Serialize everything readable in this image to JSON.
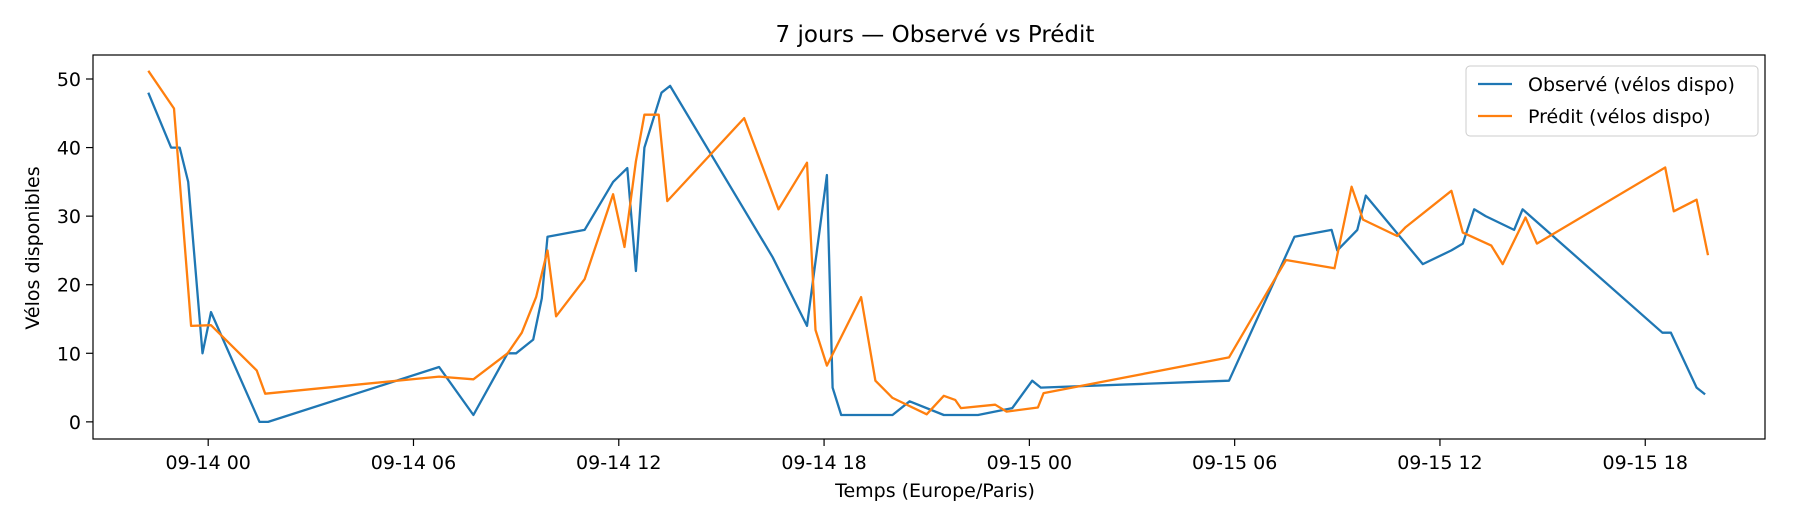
{
  "chart_data": {
    "type": "line",
    "title": "7 jours — Observé vs Prédit",
    "xlabel": "Temps (Europe/Paris)",
    "ylabel": "Vélos disponibles",
    "x_range": [
      "2024-09-13 20:38",
      "2024-09-15 21:30"
    ],
    "ylim": [
      -2.5,
      53.5
    ],
    "x_ticks": [
      {
        "label": "09-14 00",
        "t": "2024-09-14 00:00"
      },
      {
        "label": "09-14 06",
        "t": "2024-09-14 06:00"
      },
      {
        "label": "09-14 12",
        "t": "2024-09-14 12:00"
      },
      {
        "label": "09-14 18",
        "t": "2024-09-14 18:00"
      },
      {
        "label": "09-15 00",
        "t": "2024-09-15 00:00"
      },
      {
        "label": "09-15 06",
        "t": "2024-09-15 06:00"
      },
      {
        "label": "09-15 12",
        "t": "2024-09-15 12:00"
      },
      {
        "label": "09-15 18",
        "t": "2024-09-15 18:00"
      }
    ],
    "y_ticks": [
      0,
      10,
      20,
      30,
      40,
      50
    ],
    "grid": false,
    "legend_position": "top-right",
    "series": [
      {
        "name": "Observé (vélos dispo)",
        "color": "#1f77b4",
        "points": [
          [
            "2024-09-13 22:15",
            48
          ],
          [
            "2024-09-13 22:55",
            40
          ],
          [
            "2024-09-13 23:10",
            40
          ],
          [
            "2024-09-13 23:25",
            35
          ],
          [
            "2024-09-13 23:50",
            10
          ],
          [
            "2024-09-14 00:05",
            16
          ],
          [
            "2024-09-14 01:30",
            0
          ],
          [
            "2024-09-14 01:45",
            0
          ],
          [
            "2024-09-14 06:45",
            8
          ],
          [
            "2024-09-14 07:45",
            1
          ],
          [
            "2024-09-14 08:45",
            10
          ],
          [
            "2024-09-14 09:00",
            10
          ],
          [
            "2024-09-14 09:30",
            12
          ],
          [
            "2024-09-14 09:45",
            18
          ],
          [
            "2024-09-14 09:55",
            27
          ],
          [
            "2024-09-14 11:00",
            28
          ],
          [
            "2024-09-14 11:50",
            35
          ],
          [
            "2024-09-14 12:15",
            37
          ],
          [
            "2024-09-14 12:30",
            22
          ],
          [
            "2024-09-14 12:45",
            40
          ],
          [
            "2024-09-14 13:15",
            48
          ],
          [
            "2024-09-14 13:30",
            49
          ],
          [
            "2024-09-14 16:30",
            24
          ],
          [
            "2024-09-14 17:30",
            14
          ],
          [
            "2024-09-14 17:30",
            14
          ],
          [
            "2024-09-14 18:05",
            36
          ],
          [
            "2024-09-14 18:15",
            5
          ],
          [
            "2024-09-14 18:30",
            1
          ],
          [
            "2024-09-14 20:00",
            1
          ],
          [
            "2024-09-14 20:30",
            3
          ],
          [
            "2024-09-14 21:30",
            1
          ],
          [
            "2024-09-14 22:30",
            1
          ],
          [
            "2024-09-14 23:30",
            2
          ],
          [
            "2024-09-15 00:05",
            6
          ],
          [
            "2024-09-15 00:20",
            5
          ],
          [
            "2024-09-15 05:50",
            6
          ],
          [
            "2024-09-15 07:45",
            27
          ],
          [
            "2024-09-15 08:50",
            28
          ],
          [
            "2024-09-15 09:00",
            25
          ],
          [
            "2024-09-15 09:35",
            28
          ],
          [
            "2024-09-15 09:50",
            33
          ],
          [
            "2024-09-15 11:30",
            23
          ],
          [
            "2024-09-15 12:20",
            25
          ],
          [
            "2024-09-15 12:40",
            26
          ],
          [
            "2024-09-15 13:00",
            31
          ],
          [
            "2024-09-15 13:20",
            30
          ],
          [
            "2024-09-15 14:10",
            28
          ],
          [
            "2024-09-15 14:25",
            31
          ],
          [
            "2024-09-15 18:30",
            13
          ],
          [
            "2024-09-15 18:45",
            13
          ],
          [
            "2024-09-15 19:30",
            5
          ],
          [
            "2024-09-15 19:45",
            4
          ]
        ]
      },
      {
        "name": "Prédit (vélos dispo)",
        "color": "#ff7f0e",
        "points": [
          [
            "2024-09-13 22:15",
            51.2
          ],
          [
            "2024-09-13 23:00",
            45.7
          ],
          [
            "2024-09-13 23:30",
            14
          ],
          [
            "2024-09-14 00:05",
            14.1
          ],
          [
            "2024-09-14 01:25",
            7.5
          ],
          [
            "2024-09-14 01:40",
            4.1
          ],
          [
            "2024-09-14 06:45",
            6.6
          ],
          [
            "2024-09-14 07:45",
            6.2
          ],
          [
            "2024-09-14 08:45",
            10
          ],
          [
            "2024-09-14 09:10",
            13
          ],
          [
            "2024-09-14 09:35",
            18.2
          ],
          [
            "2024-09-14 09:55",
            25
          ],
          [
            "2024-09-14 10:10",
            15.4
          ],
          [
            "2024-09-14 11:00",
            20.8
          ],
          [
            "2024-09-14 11:50",
            33.2
          ],
          [
            "2024-09-14 12:10",
            25.5
          ],
          [
            "2024-09-14 12:30",
            38
          ],
          [
            "2024-09-14 12:45",
            44.8
          ],
          [
            "2024-09-14 13:10",
            44.8
          ],
          [
            "2024-09-14 13:25",
            32.2
          ],
          [
            "2024-09-14 15:40",
            44.3
          ],
          [
            "2024-09-14 16:40",
            31
          ],
          [
            "2024-09-14 17:30",
            37.8
          ],
          [
            "2024-09-14 17:45",
            13.4
          ],
          [
            "2024-09-14 18:05",
            8.2
          ],
          [
            "2024-09-14 19:05",
            18.2
          ],
          [
            "2024-09-14 19:30",
            6
          ],
          [
            "2024-09-14 20:00",
            3.5
          ],
          [
            "2024-09-14 21:00",
            1.1
          ],
          [
            "2024-09-14 21:30",
            3.8
          ],
          [
            "2024-09-14 21:50",
            3.2
          ],
          [
            "2024-09-14 22:00",
            2
          ],
          [
            "2024-09-14 23:00",
            2.5
          ],
          [
            "2024-09-14 23:20",
            1.5
          ],
          [
            "2024-09-15 00:15",
            2.1
          ],
          [
            "2024-09-15 00:25",
            4.2
          ],
          [
            "2024-09-15 05:50",
            9.4
          ],
          [
            "2024-09-15 07:30",
            23.6
          ],
          [
            "2024-09-15 08:55",
            22.4
          ],
          [
            "2024-09-15 09:25",
            34.3
          ],
          [
            "2024-09-15 09:45",
            29.5
          ],
          [
            "2024-09-15 10:45",
            27.1
          ],
          [
            "2024-09-15 11:00",
            28.4
          ],
          [
            "2024-09-15 12:20",
            33.7
          ],
          [
            "2024-09-15 12:40",
            27.6
          ],
          [
            "2024-09-15 13:30",
            25.7
          ],
          [
            "2024-09-15 13:50",
            23
          ],
          [
            "2024-09-15 14:30",
            29.8
          ],
          [
            "2024-09-15 14:50",
            26
          ],
          [
            "2024-09-15 18:35",
            37.1
          ],
          [
            "2024-09-15 18:50",
            30.7
          ],
          [
            "2024-09-15 19:30",
            32.4
          ],
          [
            "2024-09-15 19:50",
            24.3
          ]
        ]
      }
    ]
  }
}
